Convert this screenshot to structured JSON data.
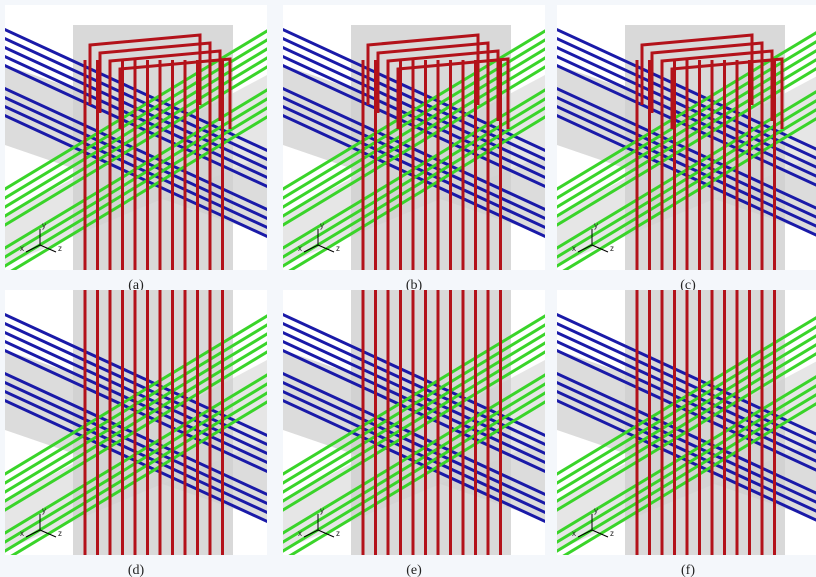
{
  "figure": {
    "panels": [
      {
        "label": "(a)"
      },
      {
        "label": "(b)"
      },
      {
        "label": "(c)"
      },
      {
        "label": "(d)"
      },
      {
        "label": "(e)"
      },
      {
        "label": "(f)"
      }
    ],
    "axis_labels": [
      "x",
      "y",
      "z"
    ]
  }
}
